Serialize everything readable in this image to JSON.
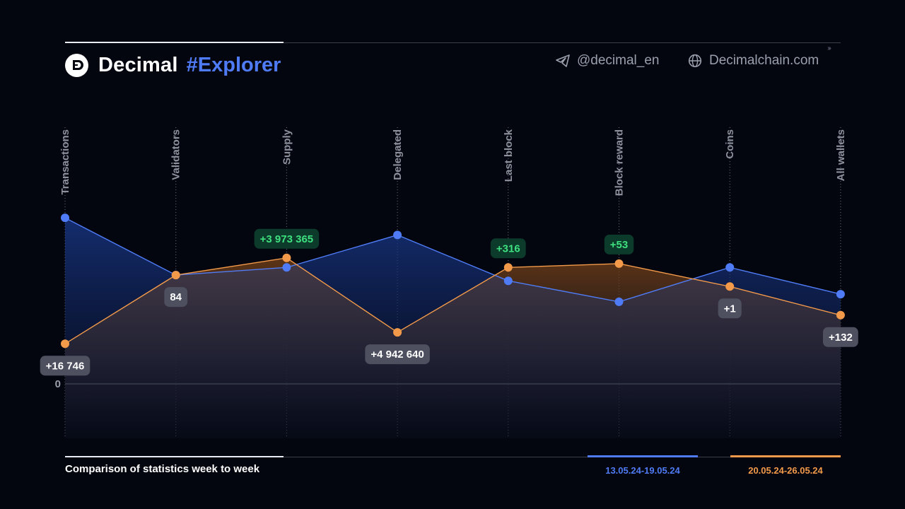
{
  "header": {
    "brand_name": "Decimal",
    "brand_tag": "#Explorer",
    "telegram": "@decimal_en",
    "website": "Decimalchain.com"
  },
  "footer": {
    "caption": "Comparison of statistics week to week"
  },
  "colors": {
    "series_a": "#4f7cf6",
    "series_b": "#f39a4a",
    "badge_positive_text": "#3ee07f",
    "badge_neutral_text": "#ffffff"
  },
  "icons": {
    "brand": "decimal-logo-icon",
    "telegram": "telegram-icon",
    "website": "globe-icon"
  },
  "chart_data": {
    "type": "line",
    "title": "Comparison of statistics week to week",
    "categories": [
      "Transactions",
      "Validators",
      "Supply",
      "Delegated",
      "Last block",
      "Block reward",
      "Coins",
      "All wallets"
    ],
    "y_reference_label": "0",
    "grid": "vertical dotted lines at each category",
    "legend_position": "bottom-right",
    "series": [
      {
        "name": "13.05.24-19.05.24",
        "color": "#4f7cf6",
        "values": [
          0.87,
          0.57,
          0.61,
          0.78,
          0.54,
          0.43,
          0.61,
          0.47
        ]
      },
      {
        "name": "20.05.24-26.05.24",
        "color": "#f39a4a",
        "values": [
          0.21,
          0.57,
          0.66,
          0.27,
          0.61,
          0.63,
          0.51,
          0.36
        ]
      }
    ],
    "annotations": [
      {
        "category": "Transactions",
        "text": "+16 746",
        "style": "neutral",
        "placement": "below",
        "series": 1
      },
      {
        "category": "Validators",
        "text": "84",
        "style": "neutral",
        "placement": "below",
        "series": 1
      },
      {
        "category": "Supply",
        "text": "+3 973 365",
        "style": "positive",
        "placement": "above",
        "series": 1
      },
      {
        "category": "Delegated",
        "text": "+4 942 640",
        "style": "neutral",
        "placement": "below",
        "series": 1
      },
      {
        "category": "Last block",
        "text": "+316",
        "style": "positive",
        "placement": "above",
        "series": 1
      },
      {
        "category": "Block reward",
        "text": "+53",
        "style": "positive",
        "placement": "above",
        "series": 1
      },
      {
        "category": "Coins",
        "text": "+1",
        "style": "neutral",
        "placement": "below",
        "series": 1
      },
      {
        "category": "All wallets",
        "text": "+132",
        "style": "neutral",
        "placement": "below",
        "series": 1
      }
    ]
  }
}
